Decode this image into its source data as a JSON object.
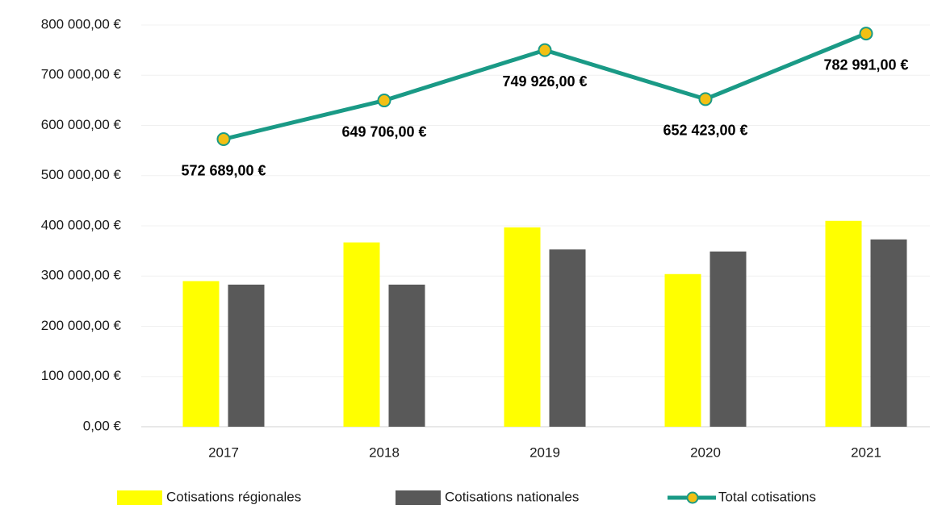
{
  "chart_data": {
    "type": "bar-line",
    "categories": [
      "2017",
      "2018",
      "2019",
      "2020",
      "2021"
    ],
    "series": [
      {
        "name": "Cotisations régionales",
        "type": "bar",
        "color": "#ffff00",
        "values": [
          290000,
          367000,
          397000,
          304000,
          410000
        ]
      },
      {
        "name": "Cotisations nationales",
        "type": "bar",
        "color": "#595959",
        "values": [
          283000,
          283000,
          353000,
          349000,
          373000
        ]
      },
      {
        "name": "Total cotisations",
        "type": "line",
        "color": "#1a9a86",
        "marker_color": "#f2c014",
        "values": [
          572689,
          649706,
          749926,
          652423,
          782991
        ],
        "value_labels": [
          "572 689,00 €",
          "649 706,00 €",
          "749 926,00 €",
          "652 423,00 €",
          "782 991,00 €"
        ]
      }
    ],
    "ylim": [
      0,
      800000
    ],
    "yticks": [
      {
        "value": 0,
        "label": "0,00 €"
      },
      {
        "value": 100000,
        "label": "100 000,00 €"
      },
      {
        "value": 200000,
        "label": "200 000,00 €"
      },
      {
        "value": 300000,
        "label": "300 000,00 €"
      },
      {
        "value": 400000,
        "label": "400 000,00 €"
      },
      {
        "value": 500000,
        "label": "500 000,00 €"
      },
      {
        "value": 600000,
        "label": "600 000,00 €"
      },
      {
        "value": 700000,
        "label": "700 000,00 €"
      },
      {
        "value": 800000,
        "label": "800 000,00 €"
      }
    ],
    "grid": true,
    "legend": "bottom"
  }
}
